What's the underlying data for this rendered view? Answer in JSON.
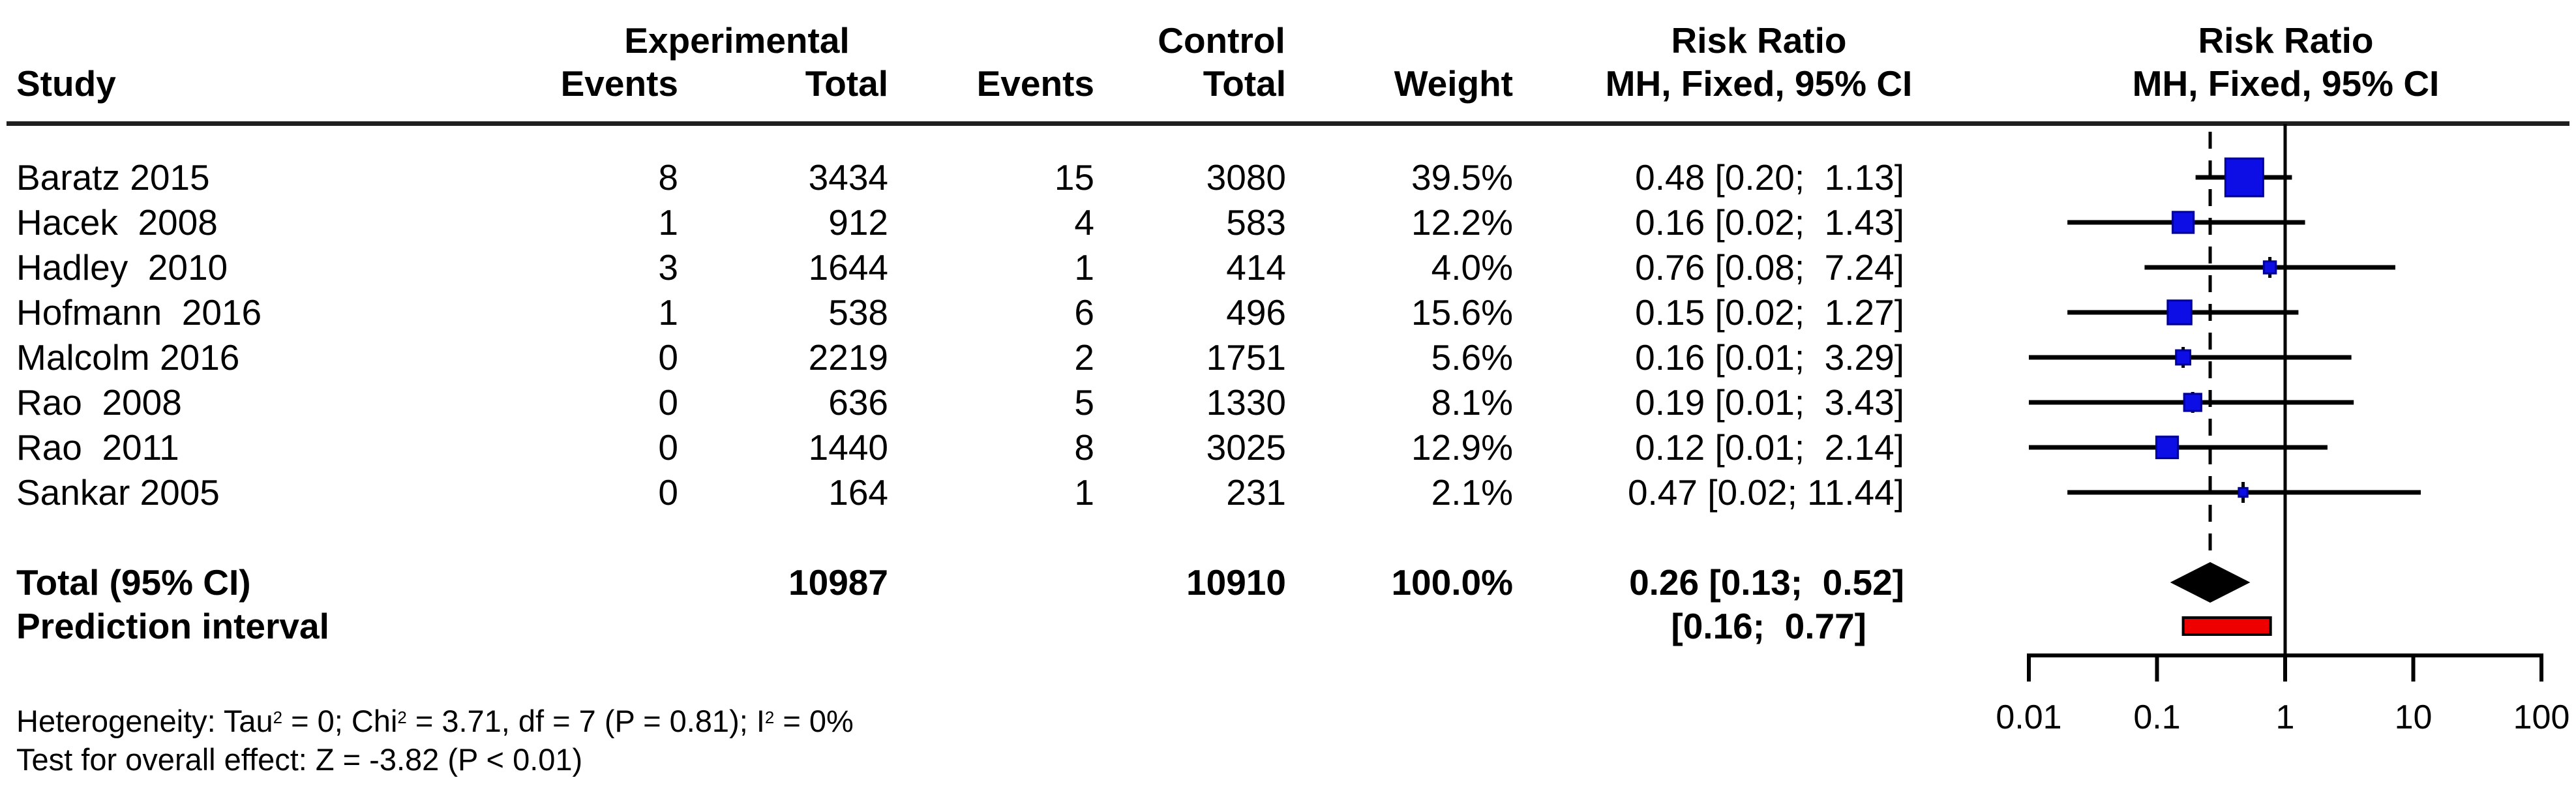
{
  "header": {
    "study": "Study",
    "experimental": "Experimental",
    "control": "Control",
    "events": "Events",
    "total": "Total",
    "weight": "Weight",
    "risk_ratio": "Risk Ratio",
    "model_ci": "MH, Fixed, 95% CI"
  },
  "chart_data": {
    "type": "forest",
    "effect_measure": "Risk Ratio",
    "model_label": "MH, Fixed, 95% CI",
    "x_scale": "log",
    "x_ticks": [
      "0.01",
      "0.1",
      "1",
      "10",
      "100"
    ],
    "x_range": [
      0.01,
      100
    ],
    "reference_value": 1,
    "pooled_estimate": 0.26,
    "studies": [
      {
        "name": "Baratz 2015",
        "exp_events": "8",
        "exp_total": "3434",
        "ctrl_events": "15",
        "ctrl_total": "3080",
        "weight": "39.5%",
        "weight_value": 39.5,
        "rr": 0.48,
        "ci_low": 0.2,
        "ci_high": 1.13,
        "ci_text": "0.48 [0.20;  1.13]"
      },
      {
        "name": "Hacek  2008",
        "exp_events": "1",
        "exp_total": "912",
        "ctrl_events": "4",
        "ctrl_total": "583",
        "weight": "12.2%",
        "weight_value": 12.2,
        "rr": 0.16,
        "ci_low": 0.02,
        "ci_high": 1.43,
        "ci_text": "0.16 [0.02;  1.43]"
      },
      {
        "name": "Hadley  2010",
        "exp_events": "3",
        "exp_total": "1644",
        "ctrl_events": "1",
        "ctrl_total": "414",
        "weight": "4.0%",
        "weight_value": 4.0,
        "rr": 0.76,
        "ci_low": 0.08,
        "ci_high": 7.24,
        "ci_text": "0.76 [0.08;  7.24]"
      },
      {
        "name": "Hofmann  2016",
        "exp_events": "1",
        "exp_total": "538",
        "ctrl_events": "6",
        "ctrl_total": "496",
        "weight": "15.6%",
        "weight_value": 15.6,
        "rr": 0.15,
        "ci_low": 0.02,
        "ci_high": 1.27,
        "ci_text": "0.15 [0.02;  1.27]"
      },
      {
        "name": "Malcolm 2016",
        "exp_events": "0",
        "exp_total": "2219",
        "ctrl_events": "2",
        "ctrl_total": "1751",
        "weight": "5.6%",
        "weight_value": 5.6,
        "rr": 0.16,
        "ci_low": 0.01,
        "ci_high": 3.29,
        "ci_text": "0.16 [0.01;  3.29]"
      },
      {
        "name": "Rao  2008",
        "exp_events": "0",
        "exp_total": "636",
        "ctrl_events": "5",
        "ctrl_total": "1330",
        "weight": "8.1%",
        "weight_value": 8.1,
        "rr": 0.19,
        "ci_low": 0.01,
        "ci_high": 3.43,
        "ci_text": "0.19 [0.01;  3.43]"
      },
      {
        "name": "Rao  2011",
        "exp_events": "0",
        "exp_total": "1440",
        "ctrl_events": "8",
        "ctrl_total": "3025",
        "weight": "12.9%",
        "weight_value": 12.9,
        "rr": 0.12,
        "ci_low": 0.01,
        "ci_high": 2.14,
        "ci_text": "0.12 [0.01;  2.14]"
      },
      {
        "name": "Sankar 2005",
        "exp_events": "0",
        "exp_total": "164",
        "ctrl_events": "1",
        "ctrl_total": "231",
        "weight": "2.1%",
        "weight_value": 2.1,
        "rr": 0.47,
        "ci_low": 0.02,
        "ci_high": 11.44,
        "ci_text": "0.47 [0.02; 11.44]"
      }
    ],
    "total_row": {
      "label": "Total (95% CI)",
      "exp_total": "10987",
      "ctrl_total": "10910",
      "weight": "100.0%",
      "rr": 0.26,
      "ci_low": 0.13,
      "ci_high": 0.52,
      "ci_text": "0.26 [0.13;  0.52]"
    },
    "prediction_row": {
      "label": "Prediction interval",
      "ci_low": 0.16,
      "ci_high": 0.77,
      "ci_text": "[0.16;  0.77]"
    },
    "colors": {
      "square": "#0D0DE6",
      "square_border": "#000099",
      "diamond": "#000000",
      "prediction_fill": "#EE0000",
      "axis": "#000000"
    }
  },
  "footnotes": {
    "heterogeneity_segments": [
      {
        "text": "Heterogeneity: Tau"
      },
      {
        "sup": "2"
      },
      {
        "text": " = 0; Chi"
      },
      {
        "sup": "2"
      },
      {
        "text": " = 3.71, df = 7 (P = 0.81); I"
      },
      {
        "sup": "2"
      },
      {
        "text": " = 0%"
      }
    ],
    "overall_effect": "Test for overall effect: Z = -3.82 (P < 0.01)"
  }
}
